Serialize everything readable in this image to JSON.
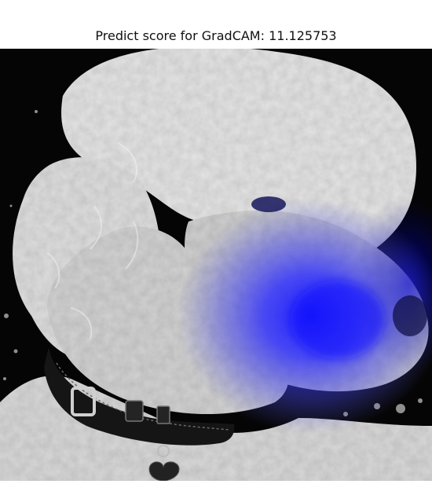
{
  "figure": {
    "title": "Predict score for GradCAM: 11.125753"
  },
  "image": {
    "subject": "white poodle with black collar, heart-shaped tag",
    "overlay": "GradCAM activation heatmap (blue)",
    "colors": {
      "background": "#000000",
      "fur": "#e6e6e6",
      "collar": "#1a1a1a",
      "heatmap": "#1e1eff"
    }
  }
}
